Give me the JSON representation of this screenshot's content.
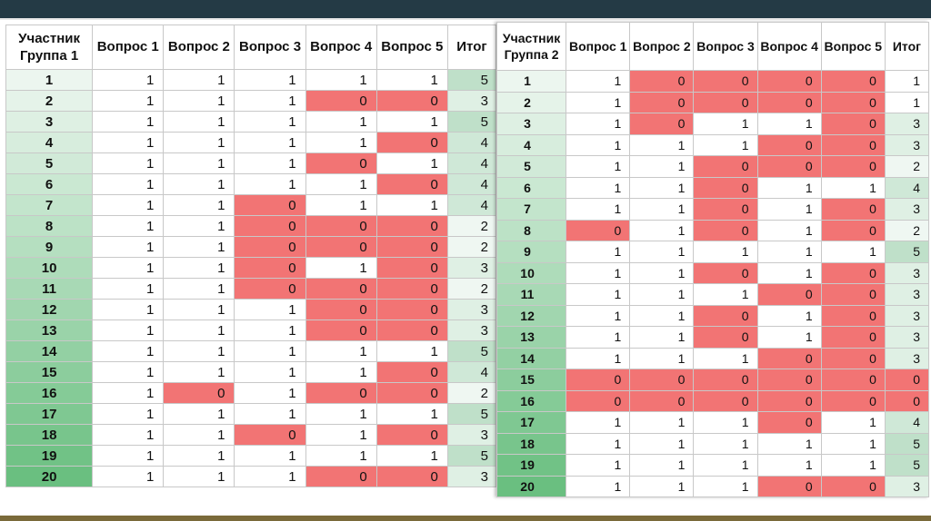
{
  "group1": {
    "headers": [
      "Участник Группа 1",
      "Вопрос 1",
      "Вопрос 2",
      "Вопрос 3",
      "Вопрос 4",
      "Вопрос 5",
      "Итог"
    ],
    "rows": [
      {
        "id": "1",
        "answers": [
          "1",
          "1",
          "1",
          "1",
          "1"
        ],
        "total": "5"
      },
      {
        "id": "2",
        "answers": [
          "1",
          "1",
          "1",
          "0",
          "0"
        ],
        "total": "3"
      },
      {
        "id": "3",
        "answers": [
          "1",
          "1",
          "1",
          "1",
          "1"
        ],
        "total": "5"
      },
      {
        "id": "4",
        "answers": [
          "1",
          "1",
          "1",
          "1",
          "0"
        ],
        "total": "4"
      },
      {
        "id": "5",
        "answers": [
          "1",
          "1",
          "1",
          "0",
          "1"
        ],
        "total": "4"
      },
      {
        "id": "6",
        "answers": [
          "1",
          "1",
          "1",
          "1",
          "0"
        ],
        "total": "4"
      },
      {
        "id": "7",
        "answers": [
          "1",
          "1",
          "0",
          "1",
          "1"
        ],
        "total": "4"
      },
      {
        "id": "8",
        "answers": [
          "1",
          "1",
          "0",
          "0",
          "0"
        ],
        "total": "2"
      },
      {
        "id": "9",
        "answers": [
          "1",
          "1",
          "0",
          "0",
          "0"
        ],
        "total": "2"
      },
      {
        "id": "10",
        "answers": [
          "1",
          "1",
          "0",
          "1",
          "0"
        ],
        "total": "3"
      },
      {
        "id": "11",
        "answers": [
          "1",
          "1",
          "0",
          "0",
          "0"
        ],
        "total": "2"
      },
      {
        "id": "12",
        "answers": [
          "1",
          "1",
          "1",
          "0",
          "0"
        ],
        "total": "3"
      },
      {
        "id": "13",
        "answers": [
          "1",
          "1",
          "1",
          "0",
          "0"
        ],
        "total": "3"
      },
      {
        "id": "14",
        "answers": [
          "1",
          "1",
          "1",
          "1",
          "1"
        ],
        "total": "5"
      },
      {
        "id": "15",
        "answers": [
          "1",
          "1",
          "1",
          "1",
          "0"
        ],
        "total": "4"
      },
      {
        "id": "16",
        "answers": [
          "1",
          "0",
          "1",
          "0",
          "0"
        ],
        "total": "2"
      },
      {
        "id": "17",
        "answers": [
          "1",
          "1",
          "1",
          "1",
          "1"
        ],
        "total": "5"
      },
      {
        "id": "18",
        "answers": [
          "1",
          "1",
          "0",
          "1",
          "0"
        ],
        "total": "3"
      },
      {
        "id": "19",
        "answers": [
          "1",
          "1",
          "1",
          "1",
          "1"
        ],
        "total": "5"
      },
      {
        "id": "20",
        "answers": [
          "1",
          "1",
          "1",
          "0",
          "0"
        ],
        "total": "3"
      }
    ]
  },
  "group2": {
    "headers": [
      "Участник Группа 2",
      "Вопрос 1",
      "Вопрос 2",
      "Вопрос 3",
      "Вопрос 4",
      "Вопрос 5",
      "Итог"
    ],
    "rows": [
      {
        "id": "1",
        "answers": [
          "1",
          "0",
          "0",
          "0",
          "0"
        ],
        "total": "1"
      },
      {
        "id": "2",
        "answers": [
          "1",
          "0",
          "0",
          "0",
          "0"
        ],
        "total": "1"
      },
      {
        "id": "3",
        "answers": [
          "1",
          "0",
          "1",
          "1",
          "0"
        ],
        "total": "3"
      },
      {
        "id": "4",
        "answers": [
          "1",
          "1",
          "1",
          "0",
          "0"
        ],
        "total": "3"
      },
      {
        "id": "5",
        "answers": [
          "1",
          "1",
          "0",
          "0",
          "0"
        ],
        "total": "2"
      },
      {
        "id": "6",
        "answers": [
          "1",
          "1",
          "0",
          "1",
          "1"
        ],
        "total": "4"
      },
      {
        "id": "7",
        "answers": [
          "1",
          "1",
          "0",
          "1",
          "0"
        ],
        "total": "3"
      },
      {
        "id": "8",
        "answers": [
          "0",
          "1",
          "0",
          "1",
          "0"
        ],
        "total": "2"
      },
      {
        "id": "9",
        "answers": [
          "1",
          "1",
          "1",
          "1",
          "1"
        ],
        "total": "5"
      },
      {
        "id": "10",
        "answers": [
          "1",
          "1",
          "0",
          "1",
          "0"
        ],
        "total": "3"
      },
      {
        "id": "11",
        "answers": [
          "1",
          "1",
          "1",
          "0",
          "0"
        ],
        "total": "3"
      },
      {
        "id": "12",
        "answers": [
          "1",
          "1",
          "0",
          "1",
          "0"
        ],
        "total": "3"
      },
      {
        "id": "13",
        "answers": [
          "1",
          "1",
          "0",
          "1",
          "0"
        ],
        "total": "3"
      },
      {
        "id": "14",
        "answers": [
          "1",
          "1",
          "1",
          "0",
          "0"
        ],
        "total": "3"
      },
      {
        "id": "15",
        "answers": [
          "0",
          "0",
          "0",
          "0",
          "0"
        ],
        "total": "0"
      },
      {
        "id": "16",
        "answers": [
          "0",
          "0",
          "0",
          "0",
          "0"
        ],
        "total": "0"
      },
      {
        "id": "17",
        "answers": [
          "1",
          "1",
          "1",
          "0",
          "1"
        ],
        "total": "4"
      },
      {
        "id": "18",
        "answers": [
          "1",
          "1",
          "1",
          "1",
          "1"
        ],
        "total": "5"
      },
      {
        "id": "19",
        "answers": [
          "1",
          "1",
          "1",
          "1",
          "1"
        ],
        "total": "5"
      },
      {
        "id": "20",
        "answers": [
          "1",
          "1",
          "1",
          "0",
          "0"
        ],
        "total": "3"
      }
    ]
  },
  "colors": {
    "zero_cell": "#f27474",
    "id_gradient_top": "#ecf6ef",
    "id_gradient_bottom": "#6abf80",
    "total_low": "#ffffff",
    "total_high": "#bfe0c9",
    "topbar": "#243a45"
  }
}
